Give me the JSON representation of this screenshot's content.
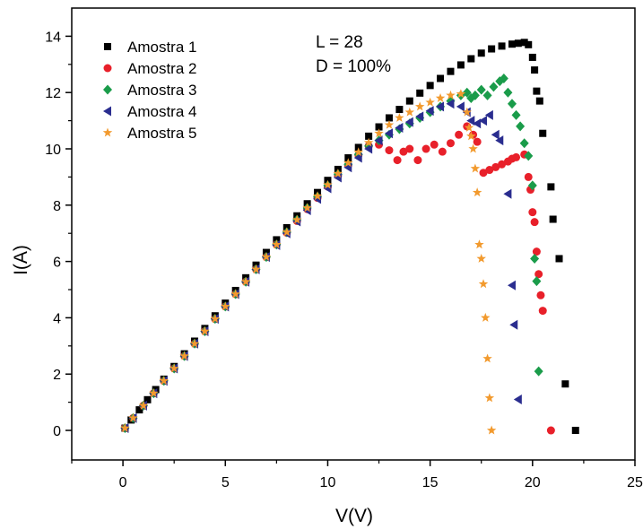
{
  "chart_data": {
    "type": "scatter",
    "xlabel": "V(V)",
    "ylabel": "I(A)",
    "xlim": [
      -2.5,
      25
    ],
    "ylim": [
      -1.05,
      15
    ],
    "xticks": [
      0,
      5,
      10,
      15,
      20,
      25
    ],
    "yticks": [
      0,
      2,
      4,
      6,
      8,
      10,
      12,
      14
    ],
    "xtick_labels": [
      "0",
      "5",
      "10",
      "15",
      "20",
      "25"
    ],
    "ytick_labels": [
      "0",
      "2",
      "4",
      "6",
      "8",
      "10",
      "12",
      "14"
    ],
    "grid": false,
    "legend_position": "top-left",
    "annotations": [
      "L = 28",
      "D = 100%"
    ],
    "series": [
      {
        "name": "Amostra 1",
        "marker": "square",
        "color": "#000000",
        "x": [
          0.1,
          0.4,
          0.8,
          1.2,
          1.6,
          2.0,
          2.5,
          3.0,
          3.5,
          4.0,
          4.5,
          5.0,
          5.5,
          6.0,
          6.5,
          7.0,
          7.5,
          8.0,
          8.5,
          9.0,
          9.5,
          10.0,
          10.5,
          11.0,
          11.5,
          12.0,
          12.5,
          13.0,
          13.5,
          14.0,
          14.5,
          15.0,
          15.5,
          16.0,
          16.5,
          17.0,
          17.5,
          18.0,
          18.5,
          19.0,
          19.3,
          19.6,
          19.8,
          20.0,
          20.1,
          20.2,
          20.35,
          20.5,
          20.9,
          21.0,
          21.3,
          21.6,
          22.1
        ],
        "y": [
          0.08,
          0.37,
          0.73,
          1.09,
          1.45,
          1.82,
          2.27,
          2.72,
          3.17,
          3.62,
          4.07,
          4.52,
          4.97,
          5.42,
          5.87,
          6.32,
          6.77,
          7.2,
          7.62,
          8.05,
          8.45,
          8.88,
          9.27,
          9.68,
          10.05,
          10.45,
          10.78,
          11.1,
          11.4,
          11.7,
          11.98,
          12.25,
          12.5,
          12.75,
          12.98,
          13.2,
          13.4,
          13.55,
          13.65,
          13.72,
          13.75,
          13.78,
          13.7,
          13.25,
          12.8,
          12.05,
          11.7,
          10.55,
          8.65,
          7.5,
          6.1,
          1.65,
          0.0
        ]
      },
      {
        "name": "Amostra 2",
        "marker": "circle",
        "color": "#e8202a",
        "x": [
          0.1,
          0.5,
          1.0,
          1.5,
          2.0,
          2.5,
          3.0,
          3.5,
          4.0,
          4.5,
          5.0,
          5.5,
          6.0,
          6.5,
          7.0,
          7.5,
          8.0,
          8.5,
          9.0,
          9.5,
          10.0,
          10.5,
          11.0,
          11.5,
          12.0,
          12.5,
          13.0,
          13.4,
          13.7,
          14.0,
          14.4,
          14.8,
          15.2,
          15.6,
          16.0,
          16.4,
          16.8,
          17.1,
          17.3,
          17.6,
          17.9,
          18.2,
          18.5,
          18.8,
          19.0,
          19.2,
          19.6,
          19.8,
          19.9,
          20.0,
          20.1,
          20.2,
          20.3,
          20.4,
          20.5,
          20.9
        ],
        "y": [
          0.08,
          0.44,
          0.88,
          1.32,
          1.76,
          2.2,
          2.64,
          3.08,
          3.52,
          3.96,
          4.4,
          4.84,
          5.28,
          5.72,
          6.16,
          6.6,
          7.02,
          7.44,
          7.86,
          8.26,
          8.66,
          9.05,
          9.42,
          9.78,
          10.1,
          10.15,
          9.95,
          9.6,
          9.9,
          10.0,
          9.6,
          10.0,
          10.15,
          9.9,
          10.2,
          10.5,
          10.8,
          10.5,
          10.25,
          9.15,
          9.25,
          9.35,
          9.45,
          9.55,
          9.65,
          9.7,
          9.8,
          9.0,
          8.55,
          7.75,
          7.4,
          6.35,
          5.55,
          4.8,
          4.25,
          0.0
        ]
      },
      {
        "name": "Amostra 3",
        "marker": "diamond",
        "color": "#1a9c4a",
        "x": [
          0.1,
          0.5,
          1.0,
          1.5,
          2.0,
          2.5,
          3.0,
          3.5,
          4.0,
          4.5,
          5.0,
          5.5,
          6.0,
          6.5,
          7.0,
          7.5,
          8.0,
          8.5,
          9.0,
          9.5,
          10.0,
          10.5,
          11.0,
          11.5,
          12.0,
          12.5,
          13.0,
          13.5,
          14.0,
          14.5,
          15.0,
          15.5,
          16.0,
          16.5,
          16.8,
          17.0,
          17.2,
          17.5,
          17.8,
          18.1,
          18.4,
          18.6,
          18.8,
          19.0,
          19.2,
          19.4,
          19.6,
          19.8,
          20.0,
          20.1,
          20.2,
          20.3
        ],
        "y": [
          0.08,
          0.44,
          0.88,
          1.32,
          1.76,
          2.2,
          2.64,
          3.08,
          3.52,
          3.96,
          4.4,
          4.84,
          5.28,
          5.72,
          6.16,
          6.6,
          7.04,
          7.48,
          7.9,
          8.3,
          8.7,
          9.1,
          9.45,
          9.8,
          10.1,
          10.3,
          10.5,
          10.7,
          10.9,
          11.1,
          11.3,
          11.5,
          11.7,
          11.9,
          12.0,
          11.8,
          11.9,
          12.1,
          11.9,
          12.2,
          12.4,
          12.5,
          12.0,
          11.6,
          11.2,
          10.8,
          10.2,
          9.75,
          8.7,
          6.1,
          5.3,
          2.1
        ]
      },
      {
        "name": "Amostra 4",
        "marker": "triangle-left",
        "color": "#2a2d8f",
        "x": [
          0.1,
          0.5,
          1.0,
          1.5,
          2.0,
          2.5,
          3.0,
          3.5,
          4.0,
          4.5,
          5.0,
          5.5,
          6.0,
          6.5,
          7.0,
          7.5,
          8.0,
          8.5,
          9.0,
          9.5,
          10.0,
          10.5,
          11.0,
          11.5,
          12.0,
          12.5,
          13.0,
          13.5,
          14.0,
          14.5,
          15.0,
          15.5,
          16.0,
          16.5,
          16.8,
          17.0,
          17.3,
          17.6,
          17.9,
          18.2,
          18.4,
          18.8,
          19.0,
          19.1,
          19.3
        ],
        "y": [
          0.08,
          0.44,
          0.88,
          1.32,
          1.76,
          2.2,
          2.64,
          3.08,
          3.52,
          3.96,
          4.4,
          4.84,
          5.28,
          5.72,
          6.16,
          6.58,
          7.0,
          7.42,
          7.82,
          8.22,
          8.6,
          8.98,
          9.34,
          9.68,
          10.0,
          10.3,
          10.55,
          10.75,
          10.95,
          11.15,
          11.35,
          11.5,
          11.6,
          11.5,
          11.3,
          11.0,
          10.9,
          11.0,
          11.2,
          10.5,
          10.3,
          8.4,
          5.15,
          3.75,
          1.1
        ]
      },
      {
        "name": "Amostra 5",
        "marker": "star",
        "color": "#f29a2e",
        "x": [
          0.1,
          0.5,
          1.0,
          1.5,
          2.0,
          2.5,
          3.0,
          3.5,
          4.0,
          4.5,
          5.0,
          5.5,
          6.0,
          6.5,
          7.0,
          7.5,
          8.0,
          8.5,
          9.0,
          9.5,
          10.0,
          10.5,
          11.0,
          11.5,
          12.0,
          12.5,
          13.0,
          13.5,
          14.0,
          14.5,
          15.0,
          15.5,
          16.0,
          16.5,
          16.8,
          16.9,
          17.0,
          17.1,
          17.2,
          17.3,
          17.4,
          17.5,
          17.6,
          17.7,
          17.8,
          17.9,
          18.0
        ],
        "y": [
          0.08,
          0.44,
          0.88,
          1.32,
          1.76,
          2.2,
          2.64,
          3.08,
          3.52,
          3.96,
          4.4,
          4.84,
          5.28,
          5.72,
          6.16,
          6.6,
          7.04,
          7.48,
          7.9,
          8.32,
          8.72,
          9.12,
          9.5,
          9.88,
          10.22,
          10.55,
          10.85,
          11.1,
          11.3,
          11.5,
          11.65,
          11.8,
          11.9,
          11.95,
          11.3,
          10.75,
          10.45,
          10.0,
          9.3,
          8.45,
          6.6,
          6.1,
          5.2,
          4.0,
          2.55,
          1.15,
          0.0
        ]
      }
    ]
  }
}
